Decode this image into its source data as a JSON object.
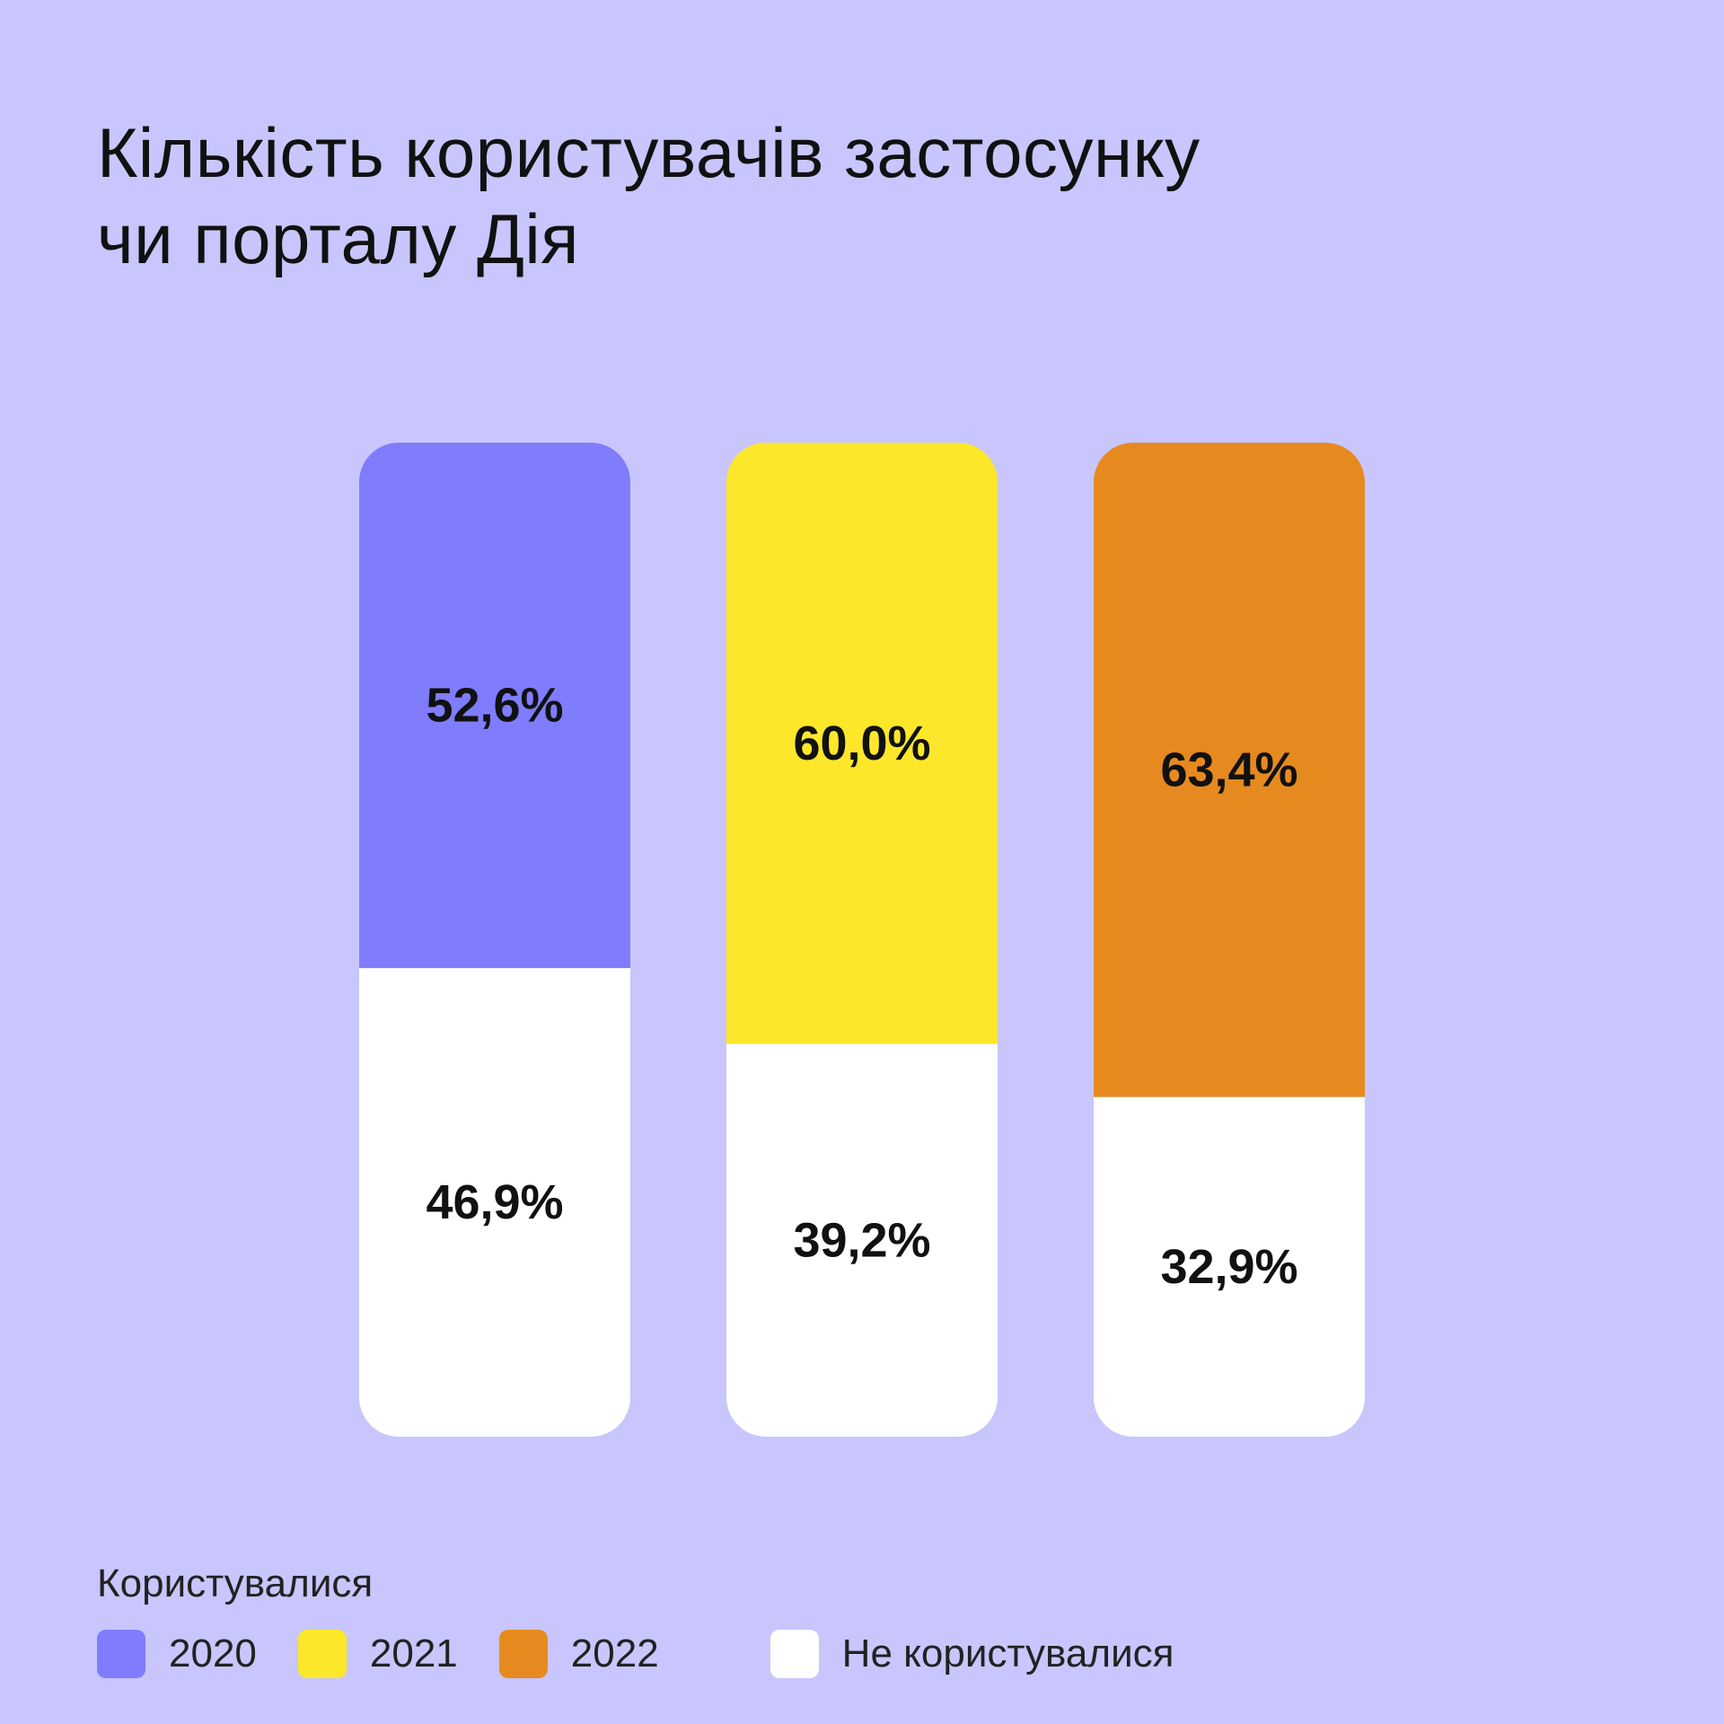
{
  "title_lines": [
    "Кількість користувачів застосунку",
    "чи порталу Дія"
  ],
  "colors": {
    "background": "#c8c6fc",
    "2020": "#7f7cfe",
    "2021": "#fde72a",
    "2022": "#e68a20",
    "not_used": "#ffffff",
    "text": "#111111"
  },
  "chart_data": {
    "type": "bar",
    "stacked": true,
    "orientation": "vertical",
    "categories": [
      "2020",
      "2021",
      "2022"
    ],
    "series": [
      {
        "name": "Користувалися",
        "values": [
          52.6,
          60.0,
          63.4
        ],
        "labels": [
          "52,6%",
          "60,0%",
          "63,4%"
        ],
        "colors": [
          "#7f7cfe",
          "#fde72a",
          "#e68a20"
        ]
      },
      {
        "name": "Не користувалися",
        "values": [
          46.9,
          39.2,
          32.9
        ],
        "labels": [
          "46,9%",
          "39,2%",
          "32,9%"
        ],
        "color": "#ffffff"
      }
    ],
    "grid": false,
    "legend_position": "bottom-left"
  },
  "legend": {
    "caption": "Користувалися",
    "items": [
      {
        "label": "2020",
        "color": "#7f7cfe"
      },
      {
        "label": "2021",
        "color": "#fde72a"
      },
      {
        "label": "2022",
        "color": "#e68a20"
      },
      {
        "label": "Не користувалися",
        "color": "#ffffff"
      }
    ]
  }
}
